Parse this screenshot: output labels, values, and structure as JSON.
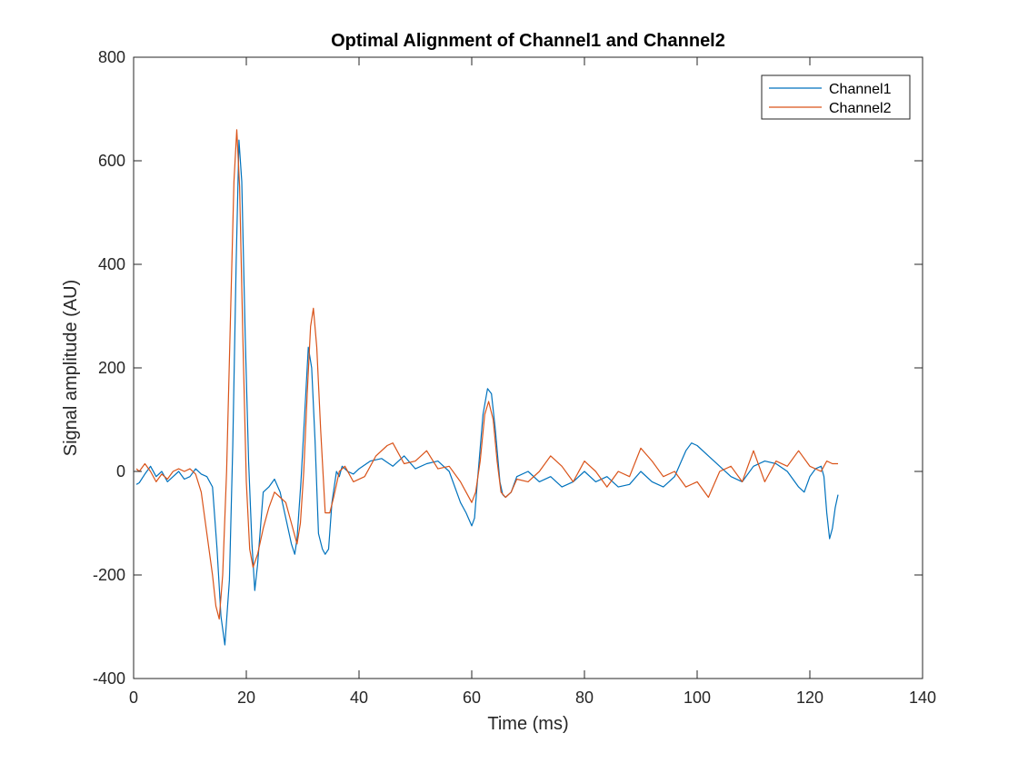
{
  "chart_data": {
    "type": "line",
    "title": "Optimal Alignment of Channel1 and Channel2",
    "xlabel": "Time (ms)",
    "ylabel": "Signal amplitude (AU)",
    "xlim": [
      0,
      140
    ],
    "ylim": [
      -400,
      800
    ],
    "xticks": [
      0,
      20,
      40,
      60,
      80,
      100,
      120,
      140
    ],
    "yticks": [
      -400,
      -200,
      0,
      200,
      400,
      600,
      800
    ],
    "xtick_labels": [
      "0",
      "20",
      "40",
      "60",
      "80",
      "100",
      "120",
      "140"
    ],
    "ytick_labels": [
      "-400",
      "-200",
      "0",
      "200",
      "400",
      "600",
      "800"
    ],
    "grid": false,
    "legend_position": "top-right",
    "series": [
      {
        "name": "Channel1",
        "color": "#0072BD",
        "x": [
          0.5,
          1,
          2,
          3,
          4,
          5,
          6,
          7,
          8,
          9,
          10,
          11,
          12,
          13,
          14,
          14.8,
          15.5,
          16.2,
          17,
          17.6,
          18.2,
          18.7,
          19.2,
          19.8,
          20.4,
          21,
          21.5,
          22,
          23,
          24,
          25,
          26,
          27,
          28,
          28.6,
          29,
          29.7,
          30.4,
          31,
          31.6,
          32.2,
          32.8,
          33.5,
          34,
          34.6,
          35.2,
          36,
          36.5,
          37,
          38,
          39,
          40,
          42,
          44,
          46,
          48,
          50,
          52,
          54,
          56,
          58,
          59,
          60,
          60.5,
          61,
          62,
          62.8,
          63.5,
          64.2,
          65,
          65.5,
          66,
          67,
          68,
          70,
          72,
          74,
          76,
          78,
          80,
          82,
          84,
          86,
          88,
          90,
          92,
          94,
          96,
          98,
          99,
          100,
          102,
          104,
          106,
          108,
          110,
          112,
          114,
          116,
          118,
          119,
          120,
          121,
          122,
          122.5,
          123,
          123.5,
          124,
          124.5,
          125
        ],
        "y": [
          -25,
          -22,
          -5,
          10,
          -10,
          0,
          -20,
          -10,
          0,
          -15,
          -10,
          5,
          -5,
          -10,
          -30,
          -150,
          -280,
          -335,
          -210,
          50,
          400,
          640,
          560,
          260,
          20,
          -140,
          -230,
          -180,
          -40,
          -30,
          -15,
          -40,
          -90,
          -140,
          -160,
          -130,
          -20,
          120,
          240,
          200,
          60,
          -120,
          -150,
          -160,
          -150,
          -60,
          0,
          -10,
          10,
          0,
          -5,
          5,
          20,
          25,
          10,
          30,
          5,
          15,
          20,
          0,
          -60,
          -80,
          -105,
          -90,
          -20,
          110,
          160,
          150,
          80,
          -20,
          -45,
          -50,
          -40,
          -10,
          0,
          -20,
          -10,
          -30,
          -20,
          0,
          -20,
          -10,
          -30,
          -25,
          0,
          -20,
          -30,
          -10,
          40,
          55,
          50,
          30,
          10,
          -10,
          -20,
          10,
          20,
          15,
          0,
          -30,
          -40,
          -10,
          5,
          10,
          -10,
          -80,
          -130,
          -110,
          -70,
          -45
        ]
      },
      {
        "name": "Channel2",
        "color": "#D95319",
        "x": [
          0.5,
          1,
          2,
          3,
          4,
          5,
          6,
          7,
          8,
          9,
          10,
          11,
          12,
          13,
          14,
          14.6,
          15.2,
          15.8,
          16.5,
          17.2,
          17.8,
          18.3,
          18.8,
          19.4,
          20,
          20.6,
          21.2,
          22,
          23,
          24,
          25,
          26,
          27,
          28,
          29,
          29.6,
          30.2,
          30.8,
          31.4,
          31.9,
          32.5,
          33.2,
          34,
          34.8,
          35.5,
          36.5,
          37.5,
          39,
          41,
          43,
          45,
          46,
          48,
          50,
          52,
          54,
          56,
          58,
          59,
          60,
          60.7,
          61.5,
          62.3,
          63,
          63.8,
          64.5,
          65.2,
          66,
          67,
          68,
          70,
          72,
          74,
          76,
          78,
          80,
          82,
          84,
          86,
          88,
          90,
          92,
          94,
          96,
          98,
          100,
          102,
          104,
          106,
          108,
          110,
          112,
          114,
          116,
          118,
          120,
          122,
          123,
          124,
          125
        ],
        "y": [
          5,
          0,
          15,
          0,
          -20,
          -5,
          -15,
          0,
          5,
          0,
          5,
          -5,
          -40,
          -120,
          -200,
          -260,
          -285,
          -200,
          0,
          300,
          560,
          660,
          550,
          250,
          -20,
          -150,
          -185,
          -160,
          -110,
          -70,
          -40,
          -50,
          -60,
          -100,
          -140,
          -100,
          0,
          150,
          280,
          315,
          240,
          80,
          -80,
          -80,
          -50,
          0,
          10,
          -20,
          -10,
          30,
          50,
          55,
          15,
          20,
          40,
          5,
          10,
          -20,
          -40,
          -60,
          -40,
          20,
          110,
          135,
          100,
          20,
          -40,
          -50,
          -40,
          -15,
          -20,
          0,
          30,
          10,
          -20,
          20,
          0,
          -30,
          0,
          -10,
          45,
          20,
          -10,
          0,
          -30,
          -20,
          -50,
          0,
          10,
          -20,
          40,
          -20,
          20,
          10,
          40,
          10,
          0,
          20,
          15,
          15
        ]
      }
    ]
  }
}
